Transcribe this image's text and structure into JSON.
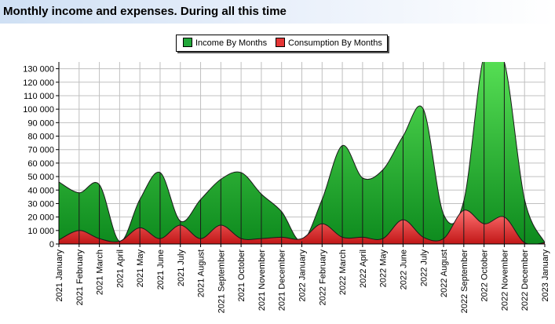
{
  "title": "Monthly income and expenses. During all this time",
  "colors": {
    "income": "#22a83a",
    "consumption": "#e53535",
    "grid": "#c0c0c0",
    "title_bg": "#d3e3f6"
  },
  "chart_data": {
    "type": "area",
    "categories": [
      "2021 January",
      "2021 February",
      "2021 March",
      "2021 April",
      "2021 May",
      "2021 June",
      "2021 July",
      "2021 August",
      "2021 September",
      "2021 October",
      "2021 November",
      "2021 December",
      "2022 January",
      "2022 February",
      "2022 March",
      "2022 April",
      "2022 May",
      "2022 June",
      "2022 July",
      "2022 August",
      "2022 September",
      "2022 October",
      "2022 November",
      "2022 December",
      "2023 January"
    ],
    "series": [
      {
        "name": "Income By Months",
        "color": "#22a83a",
        "values": [
          46000,
          38000,
          44000,
          2000,
          33000,
          53000,
          17000,
          33000,
          48000,
          53000,
          37000,
          24000,
          2000,
          33000,
          73000,
          49000,
          55000,
          80000,
          100000,
          22000,
          32000,
          140000,
          135000,
          33000,
          1000
        ]
      },
      {
        "name": "Consumption By Months",
        "color": "#e53535",
        "values": [
          3000,
          10000,
          4000,
          2000,
          12000,
          4000,
          14000,
          4000,
          14000,
          4000,
          4000,
          5000,
          4000,
          15000,
          5000,
          5000,
          4000,
          18000,
          5000,
          4000,
          25000,
          15000,
          20000,
          1000,
          1000
        ]
      }
    ],
    "ylim": [
      0,
      135000
    ],
    "yticks": [
      0,
      10000,
      20000,
      30000,
      40000,
      50000,
      60000,
      70000,
      80000,
      90000,
      100000,
      110000,
      120000,
      130000
    ],
    "ytick_labels": [
      "0",
      "10 000",
      "20 000",
      "30 000",
      "40 000",
      "50 000",
      "60 000",
      "70 000",
      "80 000",
      "90 000",
      "100 000",
      "110 000",
      "120 000",
      "130 000"
    ],
    "grid": true,
    "legend_position": "top-center"
  }
}
